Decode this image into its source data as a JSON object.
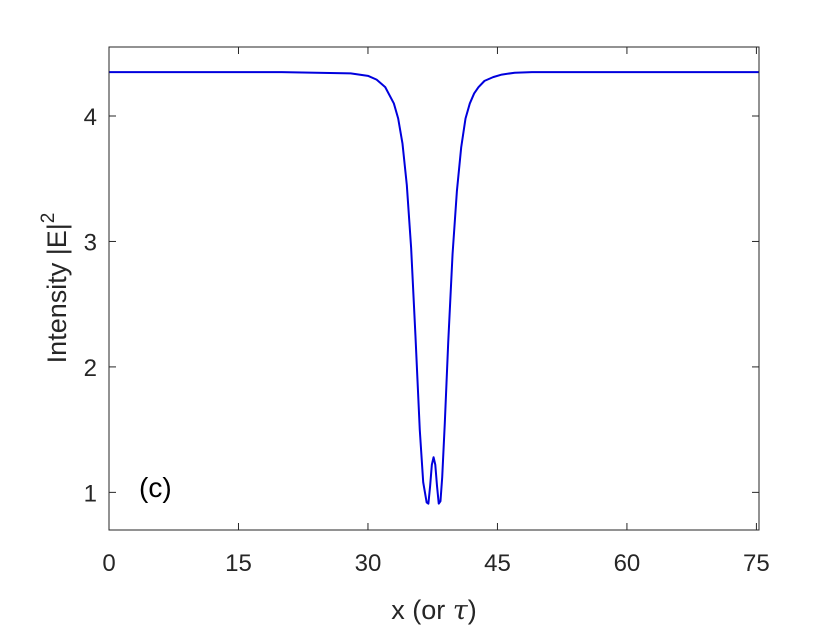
{
  "chart_data": {
    "type": "line",
    "xlabel": "x (or ",
    "xlabel_symbol": "τ",
    "xlabel_close": ")",
    "ylabel": "Intensity |E|",
    "ylabel_sup": "2",
    "annotation": "(c)",
    "xlim": [
      0,
      75.3
    ],
    "ylim": [
      0.7,
      4.55
    ],
    "xticks": [
      0,
      15,
      30,
      45,
      60,
      75
    ],
    "xtick_labels": [
      "0",
      "15",
      "30",
      "45",
      "60",
      "75"
    ],
    "yticks": [
      1,
      2,
      3,
      4
    ],
    "ytick_labels": [
      "1",
      "2",
      "3",
      "4"
    ],
    "grid": false,
    "line_color": "#0000dd",
    "axis_color": "#262626",
    "series": [
      {
        "x": [
          0,
          20,
          28,
          30,
          31,
          32,
          33,
          33.5,
          34,
          34.5,
          35,
          35.5,
          36,
          36.4,
          36.8,
          37.0,
          37.2,
          37.4,
          37.6,
          37.8,
          38.0,
          38.2,
          38.4,
          38.6,
          38.9,
          39.3,
          39.8,
          40.3,
          40.8,
          41.3,
          41.8,
          42.3,
          42.8,
          43.5,
          44.5,
          45.5,
          47,
          49,
          52,
          60,
          75.3
        ],
        "y": [
          4.35,
          4.35,
          4.34,
          4.32,
          4.29,
          4.23,
          4.1,
          3.98,
          3.78,
          3.45,
          2.95,
          2.25,
          1.5,
          1.08,
          0.92,
          0.91,
          1.05,
          1.22,
          1.28,
          1.22,
          1.05,
          0.91,
          0.93,
          1.12,
          1.55,
          2.2,
          2.9,
          3.4,
          3.75,
          3.98,
          4.1,
          4.18,
          4.23,
          4.28,
          4.31,
          4.33,
          4.345,
          4.35,
          4.35,
          4.35,
          4.35
        ]
      }
    ]
  }
}
